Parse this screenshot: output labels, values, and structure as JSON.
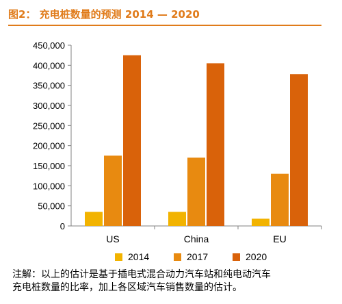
{
  "figure": {
    "title": "图2： 充电桩数量的预测 2014 — 2020",
    "note_lines": [
      "注解：以上的估计是基于插电式混合动力汽车站和纯电动汽车",
      "充电桩数量的比率，加上各区域汽车销售数量的估计。"
    ]
  },
  "colors": {
    "title": "#e07b1a",
    "series": [
      "#f2b300",
      "#e88a10",
      "#d9620a"
    ]
  },
  "chart_data": {
    "type": "bar",
    "title": "充电桩数量的预测 2014 — 2020",
    "categories": [
      "US",
      "China",
      "EU"
    ],
    "series": [
      {
        "name": "2014",
        "values": [
          35000,
          35000,
          18000
        ]
      },
      {
        "name": "2017",
        "values": [
          175000,
          170000,
          130000
        ]
      },
      {
        "name": "2020",
        "values": [
          425000,
          405000,
          378000
        ]
      }
    ],
    "ylim": [
      0,
      450000
    ],
    "yticks": [
      0,
      50000,
      100000,
      150000,
      200000,
      250000,
      300000,
      350000,
      400000,
      450000
    ],
    "ytick_labels": [
      "0",
      "50,000",
      "100,000",
      "150,000",
      "200,000",
      "250,000",
      "300,000",
      "350,000",
      "400,000",
      "450,000"
    ],
    "xlabel": "",
    "ylabel": "",
    "grid": false,
    "legend_position": "bottom"
  }
}
